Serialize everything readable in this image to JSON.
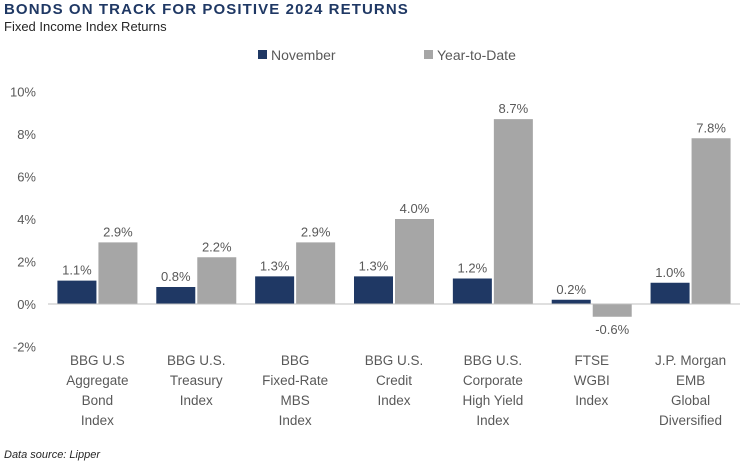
{
  "title": "BONDS ON TRACK FOR POSITIVE 2024 RETURNS",
  "subtitle": "Fixed Income Index Returns",
  "source": "Data source: Lipper",
  "colors": {
    "november": "#1f3864",
    "ytd": "#a6a6a6",
    "axis": "#bfbfbf",
    "text": "#595959"
  },
  "chart_data": {
    "type": "bar",
    "title": "BONDS ON TRACK FOR POSITIVE 2024 RETURNS",
    "subtitle": "Fixed Income Index Returns",
    "xlabel": "",
    "ylabel": "",
    "ylim": [
      -2,
      10
    ],
    "yticks": [
      -2,
      0,
      2,
      4,
      6,
      8,
      10
    ],
    "ytick_labels": [
      "-2%",
      "0%",
      "2%",
      "4%",
      "6%",
      "8%",
      "10%"
    ],
    "grid": false,
    "legend": "top",
    "categories": [
      [
        "BBG U.S",
        "Aggregate",
        "Bond",
        "Index"
      ],
      [
        "BBG U.S.",
        "Treasury",
        "Index"
      ],
      [
        "BBG",
        "Fixed-Rate",
        "MBS",
        "Index"
      ],
      [
        "BBG U.S.",
        "Credit",
        "Index"
      ],
      [
        "BBG U.S.",
        "Corporate",
        "High Yield",
        "Index"
      ],
      [
        "FTSE",
        "WGBI",
        "Index"
      ],
      [
        "J.P. Morgan",
        "EMB",
        "Global",
        "Diversified"
      ]
    ],
    "series": [
      {
        "name": "November",
        "values": [
          1.1,
          0.8,
          1.3,
          1.3,
          1.2,
          0.2,
          1.0
        ],
        "labels": [
          "1.1%",
          "0.8%",
          "1.3%",
          "1.3%",
          "1.2%",
          "0.2%",
          "1.0%"
        ]
      },
      {
        "name": "Year-to-Date",
        "values": [
          2.9,
          2.2,
          2.9,
          4.0,
          8.7,
          -0.6,
          7.8
        ],
        "labels": [
          "2.9%",
          "2.2%",
          "2.9%",
          "4.0%",
          "8.7%",
          "-0.6%",
          "7.8%"
        ]
      }
    ]
  }
}
